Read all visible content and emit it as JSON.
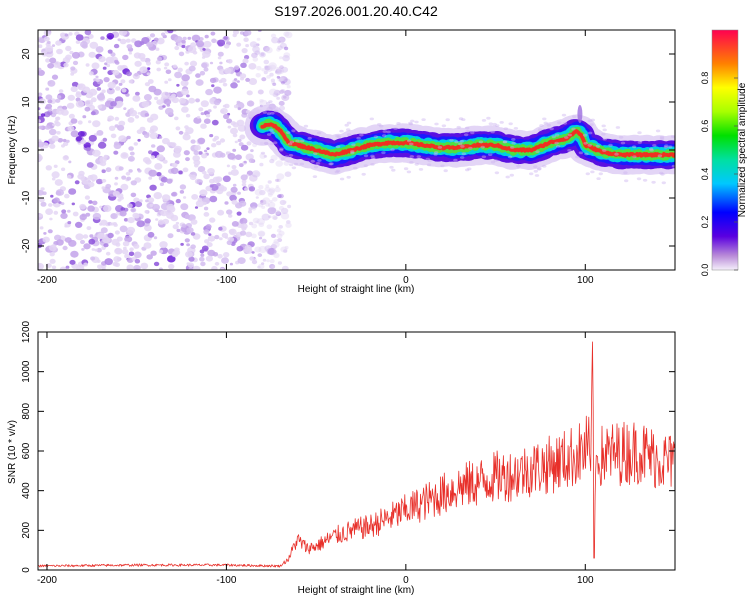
{
  "title": "S197.2026.001.20.40.C42",
  "chart_data": [
    {
      "type": "heatmap",
      "name": "spectrogram",
      "xlabel": "Height of straight line (km)",
      "ylabel": "Frequency (Hz)",
      "xlim": [
        -205,
        150
      ],
      "ylim": [
        -25,
        25
      ],
      "x_ticks": [
        -200,
        -100,
        0,
        100
      ],
      "y_ticks": [
        -20,
        -10,
        0,
        10,
        20
      ],
      "noise_region_x": [
        -205,
        -73
      ],
      "signal_track": {
        "x": [
          -80,
          -75,
          -70,
          -65,
          -60,
          -50,
          -40,
          -30,
          -20,
          -10,
          0,
          10,
          20,
          30,
          40,
          50,
          60,
          70,
          80,
          90,
          95,
          98,
          100,
          110,
          120,
          130,
          140,
          150
        ],
        "freq": [
          5,
          5.5,
          4,
          1.5,
          1,
          0,
          -1,
          0,
          1,
          1.5,
          1.5,
          1,
          0.5,
          0.5,
          1,
          1,
          0,
          0,
          1.5,
          2.5,
          4,
          3,
          1,
          -0.5,
          -1,
          -1,
          -1,
          -1
        ]
      }
    },
    {
      "type": "heatmap_colorbar",
      "name": "colorbar",
      "label": "Normalized spectral amplitude",
      "range": [
        0,
        1
      ],
      "ticks": [
        0.0,
        0.2,
        0.4,
        0.6,
        0.8
      ]
    },
    {
      "type": "line",
      "name": "snr",
      "xlabel": "Height of straight line (km)",
      "ylabel": "SNR (10 * v/v)",
      "xlim": [
        -205,
        150
      ],
      "ylim": [
        0,
        1200
      ],
      "x_ticks": [
        -200,
        -100,
        0,
        100
      ],
      "y_ticks": [
        0,
        200,
        400,
        600,
        800,
        1000,
        1200
      ],
      "color": "#e8302a",
      "envelope": {
        "x": [
          -205,
          -150,
          -100,
          -70,
          -65,
          -62,
          -60,
          -55,
          -50,
          -40,
          -30,
          -20,
          -10,
          0,
          10,
          20,
          30,
          40,
          50,
          60,
          70,
          80,
          90,
          95,
          100,
          102,
          103,
          104,
          105,
          106,
          108,
          110,
          120,
          130,
          140,
          150
        ],
        "y": [
          20,
          25,
          25,
          20,
          60,
          130,
          150,
          110,
          120,
          170,
          200,
          220,
          260,
          300,
          340,
          380,
          420,
          440,
          470,
          480,
          510,
          530,
          560,
          580,
          600,
          650,
          500,
          1200,
          200,
          580,
          560,
          580,
          590,
          600,
          560,
          540
        ]
      }
    }
  ]
}
